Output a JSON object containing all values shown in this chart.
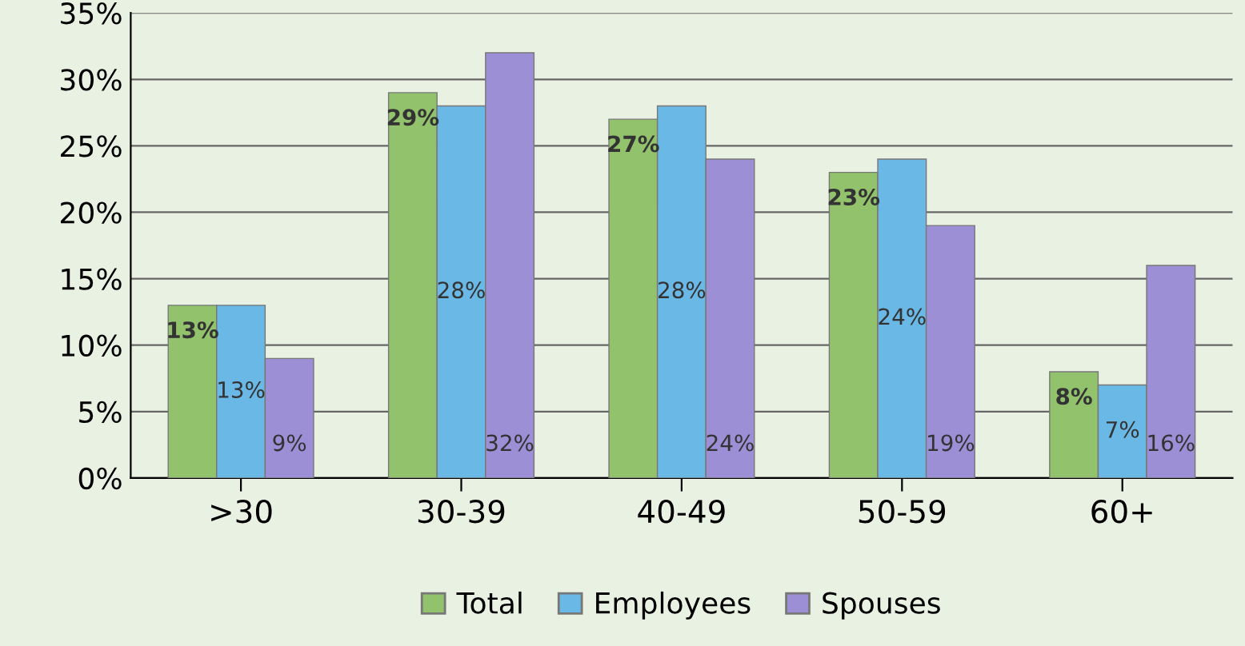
{
  "chart_data": {
    "type": "bar",
    "categories": [
      ">30",
      "30-39",
      "40-49",
      "50-59",
      "60+"
    ],
    "series": [
      {
        "name": "Total",
        "color": "#93c26c",
        "values": [
          13,
          29,
          27,
          23,
          8
        ],
        "value_labels": [
          "13%",
          "29%",
          "27%",
          "23%",
          "8%"
        ]
      },
      {
        "name": "Employees",
        "color": "#6ab8e6",
        "values": [
          13,
          28,
          28,
          24,
          7
        ],
        "value_labels": [
          "13%",
          "28%",
          "28%",
          "24%",
          "7%"
        ]
      },
      {
        "name": "Spouses",
        "color": "#9d8fd6",
        "values": [
          9,
          32,
          24,
          19,
          16
        ],
        "value_labels": [
          "9%",
          "32%",
          "24%",
          "19%",
          "16%"
        ]
      }
    ],
    "ylim": [
      0,
      35
    ],
    "yticks": [
      {
        "value": 0,
        "label": "0%"
      },
      {
        "value": 5,
        "label": "5%"
      },
      {
        "value": 10,
        "label": "10%"
      },
      {
        "value": 15,
        "label": "15%"
      },
      {
        "value": 20,
        "label": "20%"
      },
      {
        "value": 25,
        "label": "25%"
      },
      {
        "value": 30,
        "label": "30%"
      },
      {
        "value": 35,
        "label": "35%"
      }
    ],
    "grid": "y",
    "legend": "bottom"
  }
}
